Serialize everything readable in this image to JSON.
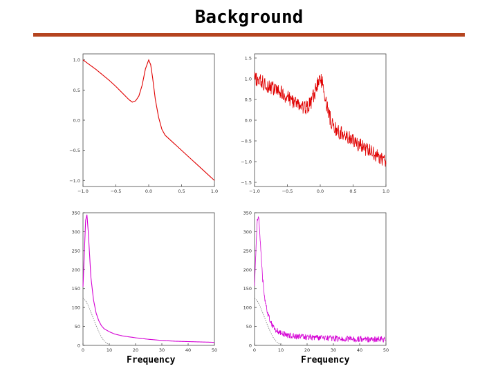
{
  "title": "Background",
  "colors": {
    "rule": "#b5441f",
    "signal": "#e00000",
    "spectrum": "#d400d4",
    "reference": "#808080"
  },
  "chart_data": [
    {
      "type": "line",
      "title": "",
      "xlabel": "",
      "ylabel": "",
      "xlim": [
        -1.0,
        1.0
      ],
      "ylim": [
        -1.1,
        1.1
      ],
      "xticks": [
        "−1.0",
        "−0.5",
        "0.0",
        "0.5",
        "1.0"
      ],
      "xtick_values": [
        -1.0,
        -0.5,
        0.0,
        0.5,
        1.0
      ],
      "yticks": [
        "−1.0",
        "−0.5",
        "0.0",
        "0.5",
        "1.0"
      ],
      "ytick_values": [
        -1.0,
        -0.5,
        0.0,
        0.5,
        1.0
      ],
      "series": [
        {
          "style": "clean",
          "color": "#e00000",
          "x": [
            -1.0,
            -0.9,
            -0.8,
            -0.7,
            -0.6,
            -0.5,
            -0.4,
            -0.3,
            -0.25,
            -0.2,
            -0.15,
            -0.1,
            -0.05,
            0.0,
            0.03,
            0.06,
            0.1,
            0.15,
            0.2,
            0.25,
            0.3,
            0.4,
            0.5,
            0.6,
            0.7,
            0.8,
            0.9,
            1.0
          ],
          "y": [
            1.0,
            0.92,
            0.84,
            0.75,
            0.66,
            0.56,
            0.45,
            0.34,
            0.3,
            0.32,
            0.4,
            0.58,
            0.85,
            1.0,
            0.92,
            0.7,
            0.35,
            0.05,
            -0.15,
            -0.25,
            -0.3,
            -0.4,
            -0.5,
            -0.6,
            -0.7,
            -0.8,
            -0.9,
            -1.0
          ]
        }
      ]
    },
    {
      "type": "line",
      "title": "",
      "xlabel": "",
      "ylabel": "",
      "xlim": [
        -1.0,
        1.0
      ],
      "ylim": [
        -1.6,
        1.6
      ],
      "xticks": [
        "−1.0",
        "−0.5",
        "0.0",
        "0.5",
        "1.0"
      ],
      "xtick_values": [
        -1.0,
        -0.5,
        0.0,
        0.5,
        1.0
      ],
      "yticks": [
        "−1.5",
        "−1.0",
        "−0.5",
        "0.0",
        "0.5",
        "1.0",
        "1.5"
      ],
      "ytick_values": [
        -1.5,
        -1.0,
        -0.5,
        0.0,
        0.5,
        1.0,
        1.5
      ],
      "series": [
        {
          "style": "noisy",
          "color": "#e00000",
          "noise_amplitude": 0.18,
          "x": [
            -1.0,
            -0.9,
            -0.8,
            -0.7,
            -0.6,
            -0.5,
            -0.4,
            -0.3,
            -0.25,
            -0.2,
            -0.15,
            -0.1,
            -0.05,
            0.0,
            0.03,
            0.06,
            0.1,
            0.15,
            0.2,
            0.25,
            0.3,
            0.4,
            0.5,
            0.6,
            0.7,
            0.8,
            0.9,
            1.0
          ],
          "y": [
            1.0,
            0.92,
            0.84,
            0.75,
            0.66,
            0.56,
            0.45,
            0.34,
            0.3,
            0.32,
            0.4,
            0.58,
            0.85,
            1.0,
            0.92,
            0.7,
            0.35,
            0.05,
            -0.15,
            -0.25,
            -0.3,
            -0.4,
            -0.5,
            -0.6,
            -0.7,
            -0.8,
            -0.9,
            -1.0
          ]
        }
      ]
    },
    {
      "type": "line",
      "title": "",
      "xlabel": "Frequency",
      "ylabel": "",
      "xlim": [
        0,
        50
      ],
      "ylim": [
        0,
        350
      ],
      "xticks": [
        "0",
        "10",
        "20",
        "30",
        "40",
        "50"
      ],
      "xtick_values": [
        0,
        10,
        20,
        30,
        40,
        50
      ],
      "yticks": [
        "0",
        "50",
        "100",
        "150",
        "200",
        "250",
        "300",
        "350"
      ],
      "ytick_values": [
        0,
        50,
        100,
        150,
        200,
        250,
        300,
        350
      ],
      "series": [
        {
          "style": "clean",
          "color": "#d400d4",
          "x": [
            0,
            1,
            1.5,
            2,
            3,
            4,
            5,
            6,
            7,
            8,
            10,
            12,
            15,
            20,
            25,
            30,
            35,
            40,
            45,
            50
          ],
          "y": [
            155,
            330,
            345,
            300,
            180,
            120,
            85,
            65,
            52,
            44,
            36,
            30,
            25,
            20,
            16,
            13,
            11,
            10,
            9,
            8
          ]
        },
        {
          "style": "dotted",
          "color": "#808080",
          "x": [
            0,
            1,
            2,
            3,
            4,
            5,
            6,
            7,
            8,
            9,
            10,
            11
          ],
          "y": [
            125,
            118,
            105,
            88,
            70,
            52,
            36,
            22,
            12,
            6,
            2,
            0
          ]
        }
      ]
    },
    {
      "type": "line",
      "title": "",
      "xlabel": "Frequency",
      "ylabel": "",
      "xlim": [
        0,
        50
      ],
      "ylim": [
        0,
        350
      ],
      "xticks": [
        "0",
        "10",
        "20",
        "30",
        "40",
        "50"
      ],
      "xtick_values": [
        0,
        10,
        20,
        30,
        40,
        50
      ],
      "yticks": [
        "0",
        "50",
        "100",
        "150",
        "200",
        "250",
        "300",
        "350"
      ],
      "ytick_values": [
        0,
        50,
        100,
        150,
        200,
        250,
        300,
        350
      ],
      "series": [
        {
          "style": "noisy",
          "color": "#d400d4",
          "noise_amplitude": 8,
          "x": [
            0,
            1,
            1.5,
            2,
            3,
            4,
            5,
            6,
            7,
            8,
            10,
            12,
            15,
            20,
            25,
            30,
            35,
            40,
            45,
            50
          ],
          "y": [
            155,
            330,
            345,
            300,
            180,
            120,
            85,
            65,
            52,
            42,
            32,
            28,
            24,
            22,
            20,
            18,
            17,
            17,
            16,
            15
          ]
        },
        {
          "style": "dotted",
          "color": "#808080",
          "x": [
            0,
            1,
            2,
            3,
            4,
            5,
            6,
            7,
            8,
            9,
            10,
            11
          ],
          "y": [
            125,
            118,
            105,
            88,
            70,
            52,
            36,
            22,
            12,
            6,
            2,
            0
          ]
        }
      ]
    }
  ]
}
